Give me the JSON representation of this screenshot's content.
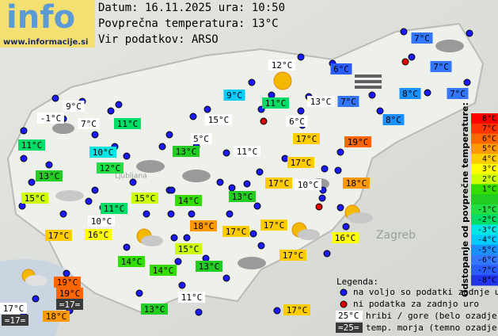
{
  "header": {
    "logo": "info",
    "site": "www.informacije.si",
    "date_line": "Datum: 16.11.2025 ura: 10:50",
    "average_line": "Povprečna temperatura: 13°C",
    "source_line": "Vir podatkov: ARSO"
  },
  "map_labels": [
    "Zagreb",
    "Ljubljana"
  ],
  "stations": [
    {
      "label": "7°C",
      "color": "#3377ff"
    },
    {
      "label": "12°C",
      "color": "#ffffff"
    },
    {
      "label": "6°C",
      "color": "#2a5cff"
    },
    {
      "label": "7°C",
      "color": "#3377ff"
    },
    {
      "label": "9°C",
      "color": "#00ccff"
    },
    {
      "label": "11°C",
      "color": "#00dd66"
    },
    {
      "label": "13°C",
      "color": "#ffffff"
    },
    {
      "label": "7°C",
      "color": "#3377ff"
    },
    {
      "label": "8°C",
      "color": "#1a90ff"
    },
    {
      "label": "7°C",
      "color": "#3377ff"
    },
    {
      "label": "9°C",
      "color": "#ffffff"
    },
    {
      "label": "-1°C",
      "color": "#ffffff"
    },
    {
      "label": "7°C",
      "color": "#ffffff"
    },
    {
      "label": "11°C",
      "color": "#00dd66"
    },
    {
      "label": "15°C",
      "color": "#ffffff"
    },
    {
      "label": "6°C",
      "color": "#ffffff"
    },
    {
      "label": "8°C",
      "color": "#1a90ff"
    },
    {
      "label": "11°C",
      "color": "#00dd66"
    },
    {
      "label": "10°C",
      "color": "#00e6e6"
    },
    {
      "label": "5°C",
      "color": "#ffffff"
    },
    {
      "label": "17°C",
      "color": "#ffcc00"
    },
    {
      "label": "19°C",
      "color": "#ff6600"
    },
    {
      "label": "13°C",
      "color": "#22cc22"
    },
    {
      "label": "11°C",
      "color": "#ffffff"
    },
    {
      "label": "12°C",
      "color": "#22dd44"
    },
    {
      "label": "17°C",
      "color": "#ffcc00"
    },
    {
      "label": "13°C",
      "color": "#22cc22"
    },
    {
      "label": "17°C",
      "color": "#ffcc00"
    },
    {
      "label": "10°C",
      "color": "#ffffff"
    },
    {
      "label": "18°C",
      "color": "#ff9900"
    },
    {
      "label": "15°C",
      "color": "#ccff00"
    },
    {
      "label": "14°C",
      "color": "#33dd00"
    },
    {
      "label": "15°C",
      "color": "#ccff00"
    },
    {
      "label": "13°C",
      "color": "#22cc22"
    },
    {
      "label": "11°C",
      "color": "#00dd66"
    },
    {
      "label": "10°C",
      "color": "#ffffff"
    },
    {
      "label": "18°C",
      "color": "#ff9900"
    },
    {
      "label": "17°C",
      "color": "#ffcc00"
    },
    {
      "label": "16°C",
      "color": "#ffff00"
    },
    {
      "label": "17°C",
      "color": "#ffcc00"
    },
    {
      "label": "17°C",
      "color": "#ffcc00"
    },
    {
      "label": "16°C",
      "color": "#ffff00"
    },
    {
      "label": "15°C",
      "color": "#ccff00"
    },
    {
      "label": "17°C",
      "color": "#ffcc00"
    },
    {
      "label": "14°C",
      "color": "#33dd00"
    },
    {
      "label": "13°C",
      "color": "#22cc22"
    },
    {
      "label": "14°C",
      "color": "#33dd00"
    },
    {
      "label": "19°C",
      "color": "#ff6600"
    },
    {
      "label": "19°C",
      "color": "#ff6600"
    },
    {
      "label": "17°C",
      "color": "#ffffff"
    },
    {
      "label": "=17=",
      "color": "#3a3a3a"
    },
    {
      "label": "13°C",
      "color": "#22cc22"
    },
    {
      "label": "11°C",
      "color": "#ffffff"
    },
    {
      "label": "17°C",
      "color": "#ffcc00"
    },
    {
      "label": "18°C",
      "color": "#ff9900"
    },
    {
      "label": "=17=",
      "color": "#3a3a3a"
    }
  ],
  "colorbar": {
    "title": "Odstopanje od povprečne temperature:",
    "rows": [
      {
        "label": "8°C",
        "color": "#ff0000"
      },
      {
        "label": "7°C",
        "color": "#ff3300"
      },
      {
        "label": "6°C",
        "color": "#ff6600"
      },
      {
        "label": "5°C",
        "color": "#ff9900"
      },
      {
        "label": "4°C",
        "color": "#ffcc00"
      },
      {
        "label": "3°C",
        "color": "#ffff00"
      },
      {
        "label": "2°C",
        "color": "#ccff00"
      },
      {
        "label": "1°C",
        "color": "#33dd00"
      },
      {
        "label": null,
        "color": "#22cc22"
      },
      {
        "label": "-1°C",
        "color": "#22dd44"
      },
      {
        "label": "-2°C",
        "color": "#00dd66"
      },
      {
        "label": "-3°C",
        "color": "#00e6e6"
      },
      {
        "label": "-4°C",
        "color": "#00ccff"
      },
      {
        "label": "-5°C",
        "color": "#1a90ff"
      },
      {
        "label": "-6°C",
        "color": "#3377ff"
      },
      {
        "label": "-7°C",
        "color": "#2a5cff"
      },
      {
        "label": "-8°C",
        "color": "#2233ee"
      }
    ]
  },
  "legend": {
    "title": "Legenda:",
    "available": "na voljo so podatki zadnje ure",
    "missing": "ni podatka za zadnjo uro",
    "hill_sample": "25°C",
    "hill_text": "hribi / gore (belo ozadje)",
    "sea_sample": "=25=",
    "sea_text": "temp. morja (temno ozadje)"
  }
}
